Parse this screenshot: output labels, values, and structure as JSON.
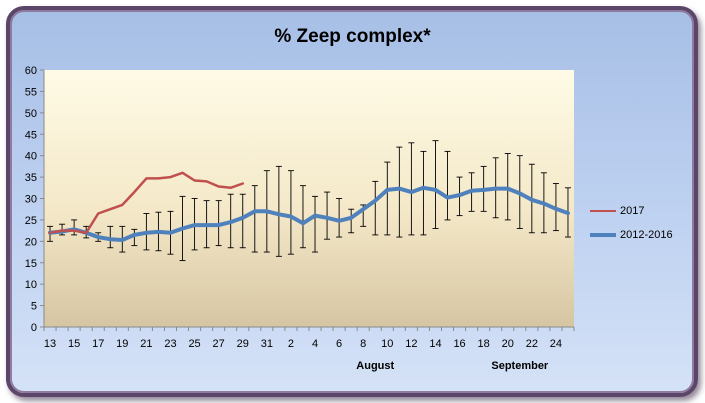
{
  "chart_data": {
    "type": "line",
    "title": "% Zeep complex*",
    "xlabel": "",
    "ylabel": "",
    "ylim": [
      0,
      60
    ],
    "y_ticks": [
      0,
      5,
      10,
      15,
      20,
      25,
      30,
      35,
      40,
      45,
      50,
      55,
      60
    ],
    "grid": false,
    "legend_position": "right",
    "x_tick_labels": [
      "13",
      "15",
      "17",
      "19",
      "21",
      "23",
      "25",
      "27",
      "29",
      "31",
      "2",
      "4",
      "6",
      "8",
      "10",
      "12",
      "14",
      "16",
      "18",
      "20",
      "22",
      "24"
    ],
    "month_labels": [
      {
        "label": "August",
        "x": 27
      },
      {
        "label": "September",
        "x": 39
      }
    ],
    "series": [
      {
        "name": "2017",
        "color": "#c0504d",
        "x": [
          0,
          1,
          2,
          3,
          4,
          5,
          6,
          7,
          8,
          9,
          10,
          11,
          12,
          13,
          14,
          15,
          16
        ],
        "values": [
          22,
          22.5,
          22.5,
          22,
          26.5,
          27.5,
          28.5,
          31.5,
          34.7,
          34.7,
          35,
          36,
          34.2,
          34,
          32.8,
          32.5,
          33.5
        ]
      },
      {
        "name": "2012-2016",
        "color": "#4f81bd",
        "x": [
          0,
          1,
          2,
          3,
          4,
          5,
          6,
          7,
          8,
          9,
          10,
          11,
          12,
          13,
          14,
          15,
          16,
          17,
          18,
          19,
          20,
          21,
          22,
          23,
          24,
          25,
          26,
          27,
          28,
          29,
          30,
          31,
          32,
          33,
          34,
          35,
          36,
          37,
          38,
          39,
          40,
          41,
          42,
          43
        ],
        "values": [
          22,
          22.3,
          22.8,
          22,
          21,
          20.5,
          20.3,
          21.5,
          22,
          22.2,
          22,
          23,
          23.8,
          23.8,
          23.8,
          24.5,
          25.5,
          27,
          27,
          26.3,
          25.8,
          24.2,
          26,
          25.5,
          24.8,
          25.5,
          27.5,
          29.5,
          32,
          32.3,
          31.5,
          32.5,
          32,
          30.2,
          30.8,
          31.8,
          32,
          32.3,
          32.3,
          31.2,
          29.7,
          28.8,
          27.6,
          26.6
        ],
        "err_low": [
          20,
          21.5,
          21.5,
          20.8,
          20,
          18.5,
          17.5,
          19,
          18,
          17.8,
          17,
          15.5,
          18,
          18.5,
          19,
          18.5,
          18.5,
          17.5,
          17.5,
          16.5,
          17,
          18.5,
          17.5,
          20.5,
          21,
          22,
          23.5,
          21.5,
          21.5,
          21,
          21.5,
          21.5,
          23,
          25,
          26,
          27,
          27,
          25.5,
          25,
          23,
          22,
          22,
          22.5,
          21
        ],
        "err_high": [
          23.5,
          24,
          25,
          23.5,
          22,
          23.5,
          23.5,
          22.8,
          26.5,
          26.8,
          27,
          30.5,
          30,
          29.5,
          29.5,
          31,
          31,
          33,
          36.5,
          37.5,
          36.5,
          33,
          30.5,
          31.5,
          30,
          27.5,
          28.5,
          34,
          38.5,
          42,
          43,
          41,
          43.5,
          41,
          35,
          36,
          37.5,
          39.5,
          40.5,
          40,
          38,
          36,
          33.5,
          32.5
        ]
      }
    ]
  }
}
